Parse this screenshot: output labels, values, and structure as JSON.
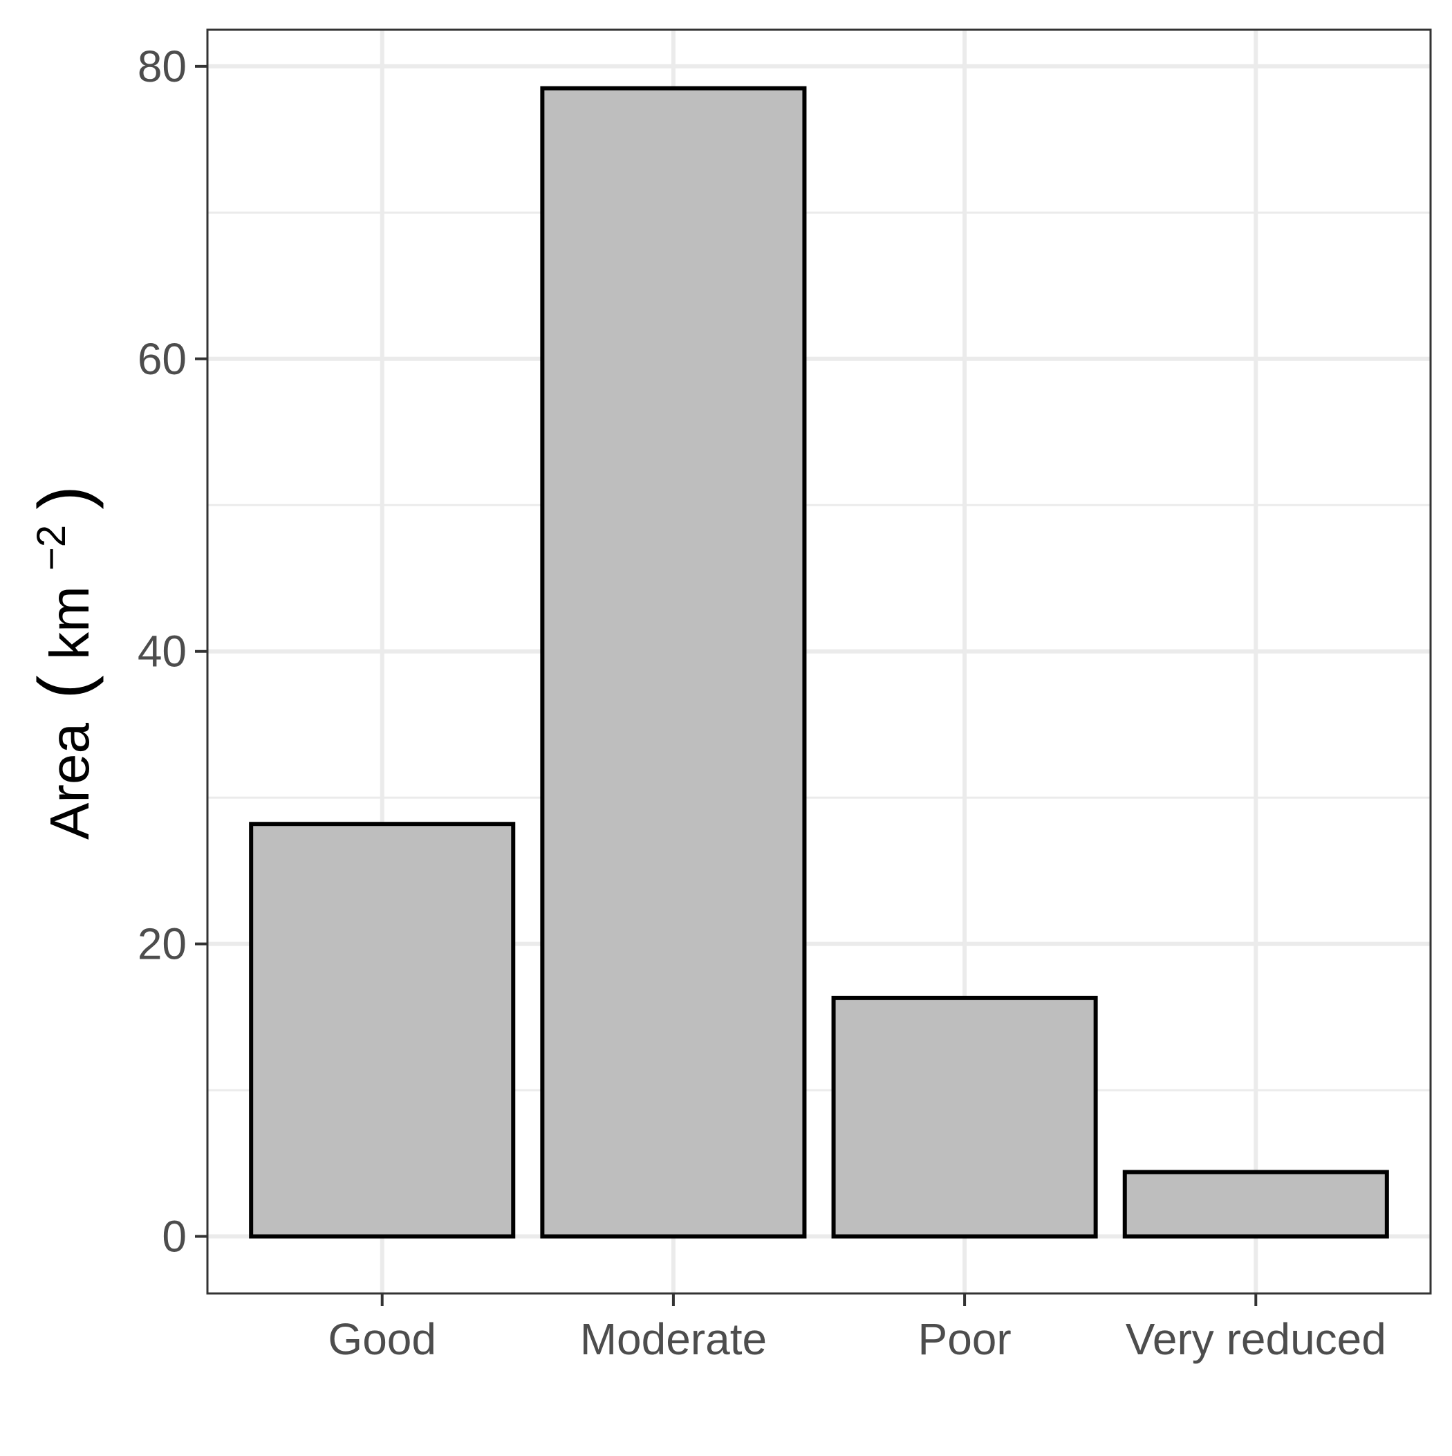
{
  "chart_data": {
    "type": "bar",
    "categories": [
      "Good",
      "Moderate",
      "Poor",
      "Very reduced"
    ],
    "values": [
      28.2,
      78.5,
      16.3,
      4.4
    ],
    "xlabel": "",
    "ylabel": {
      "base": "Area",
      "open": "(",
      "unit": "km",
      "exponent": "−2",
      "close": ")"
    },
    "ylim": [
      -3.9,
      82.5
    ],
    "yticks": [
      0,
      20,
      40,
      60,
      80
    ],
    "yticks_minor": [
      10,
      30,
      50,
      70
    ],
    "grid": true,
    "legend": "none",
    "colors": {
      "bar_fill": "#bebebe",
      "bar_stroke": "#000000",
      "grid": "#ebebeb",
      "panel_border": "#333333",
      "tick_label": "#4d4d4d",
      "axis_title": "#000000",
      "background": "#ffffff"
    }
  }
}
